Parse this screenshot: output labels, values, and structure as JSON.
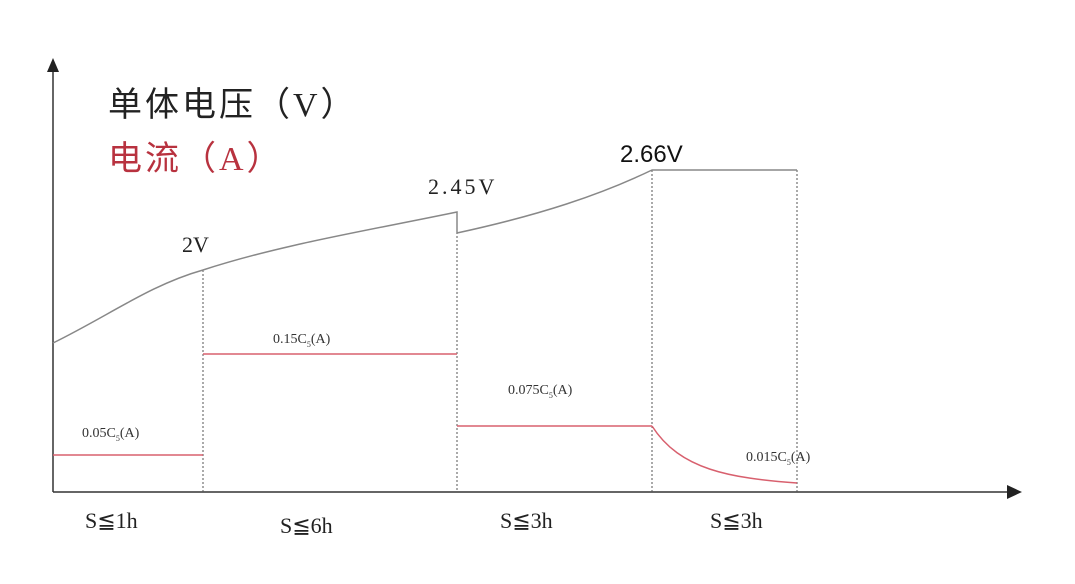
{
  "axes": {
    "y_title": "单体电压（V）",
    "y2_title": "电流（A）"
  },
  "voltage_labels": [
    "2V",
    "2.45V",
    "2.66V"
  ],
  "current_labels": [
    {
      "main": "0.05C",
      "sub": "5",
      "unit": "(A)"
    },
    {
      "main": "0.15C",
      "sub": "5",
      "unit": "(A)"
    },
    {
      "main": "0.075C",
      "sub": "5",
      "unit": "(A)"
    },
    {
      "main": "0.015C",
      "sub": "5",
      "unit": "(A)"
    }
  ],
  "stages": [
    "S≦1h",
    "S≦6h",
    "S≦3h",
    "S≦3h"
  ]
}
